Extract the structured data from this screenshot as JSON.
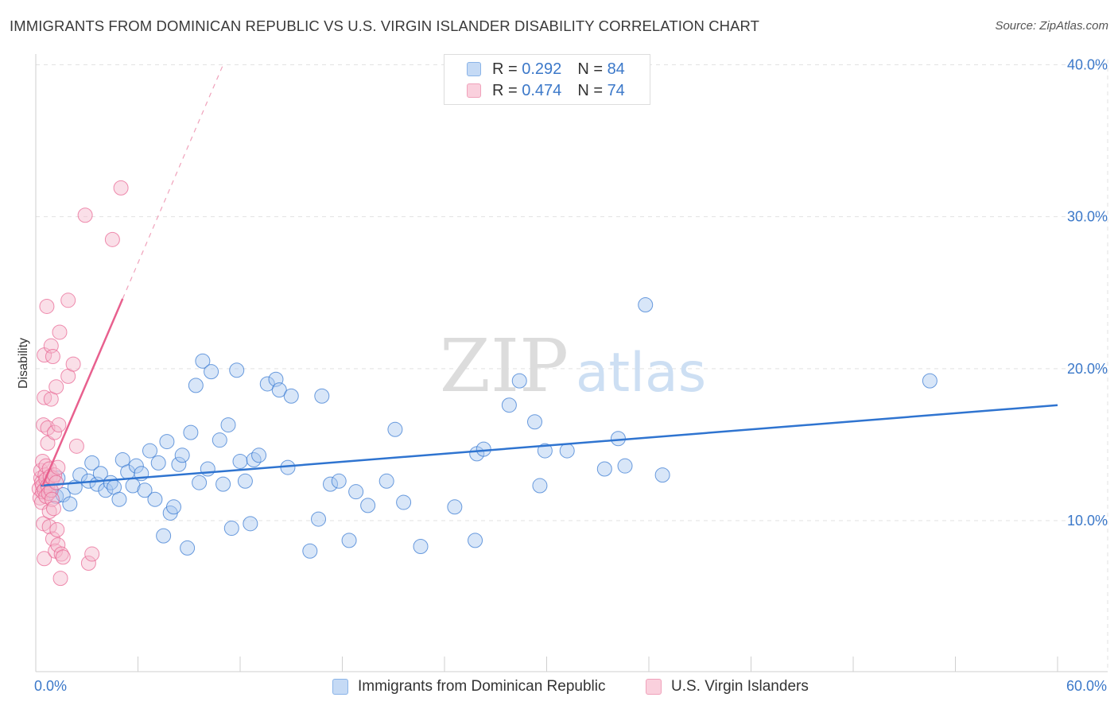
{
  "title": "IMMIGRANTS FROM DOMINICAN REPUBLIC VS U.S. VIRGIN ISLANDER DISABILITY CORRELATION CHART",
  "source": "Source: ZipAtlas.com",
  "watermark": {
    "part1": "ZIP",
    "part2": "atlas"
  },
  "legend_top": [
    {
      "r_label": "R =",
      "r_value": "0.292",
      "n_label": "N =",
      "n_value": "84",
      "color": "#a8c8f0"
    },
    {
      "r_label": "R =",
      "r_value": "0.474",
      "n_label": "N =",
      "n_value": "74",
      "color": "#f5b8cb"
    }
  ],
  "legend_bottom": [
    {
      "label": "Immigrants from Dominican Republic",
      "color": "#a8c8f0"
    },
    {
      "label": "U.S. Virgin Islanders",
      "color": "#f5b8cb"
    }
  ],
  "colors": {
    "blue": "#2f74d0",
    "pink": "#e8608e",
    "blue_fill": "#a8c8f0",
    "pink_fill": "#f5b8cb",
    "grid": "#e2e2e2",
    "axis_text": "#3b78c9"
  },
  "chart_data": {
    "type": "scatter",
    "title": "IMMIGRANTS FROM DOMINICAN REPUBLIC VS U.S. VIRGIN ISLANDER DISABILITY CORRELATION CHART",
    "xlabel": "",
    "ylabel": "Disability",
    "xlim": [
      0,
      60
    ],
    "ylim": [
      0,
      41.5
    ],
    "x_tick_labels": [
      {
        "value": 0,
        "label": "0.0%"
      },
      {
        "value": 60,
        "label": "60.0%"
      }
    ],
    "y_tick_labels": [
      {
        "value": 10,
        "label": "10.0%"
      },
      {
        "value": 20,
        "label": "20.0%"
      },
      {
        "value": 30,
        "label": "30.0%"
      },
      {
        "value": 40,
        "label": "40.0%"
      }
    ],
    "series": [
      {
        "name": "Immigrants from Dominican Republic",
        "color": "blue",
        "trend": {
          "x0": 0.3,
          "y0": 12.3,
          "x1": 60,
          "y1": 17.6
        },
        "points": [
          [
            0.7,
            12.4
          ],
          [
            0.9,
            12.0
          ],
          [
            1.2,
            11.6
          ],
          [
            1.3,
            12.8
          ],
          [
            1.6,
            11.7
          ],
          [
            2.0,
            11.1
          ],
          [
            2.3,
            12.2
          ],
          [
            2.6,
            13.0
          ],
          [
            3.1,
            12.6
          ],
          [
            3.3,
            13.8
          ],
          [
            3.6,
            12.4
          ],
          [
            3.8,
            13.1
          ],
          [
            4.1,
            12.0
          ],
          [
            4.4,
            12.5
          ],
          [
            4.6,
            12.2
          ],
          [
            4.9,
            11.4
          ],
          [
            5.1,
            14.0
          ],
          [
            5.4,
            13.2
          ],
          [
            5.7,
            12.3
          ],
          [
            5.9,
            13.6
          ],
          [
            6.2,
            13.1
          ],
          [
            6.4,
            12.0
          ],
          [
            6.7,
            14.6
          ],
          [
            7.0,
            11.4
          ],
          [
            7.2,
            13.8
          ],
          [
            7.5,
            9.0
          ],
          [
            7.7,
            15.2
          ],
          [
            7.9,
            10.5
          ],
          [
            8.1,
            10.9
          ],
          [
            8.4,
            13.7
          ],
          [
            8.6,
            14.3
          ],
          [
            8.9,
            8.2
          ],
          [
            9.1,
            15.8
          ],
          [
            9.4,
            18.9
          ],
          [
            9.6,
            12.5
          ],
          [
            9.8,
            20.5
          ],
          [
            10.1,
            13.4
          ],
          [
            10.3,
            19.8
          ],
          [
            10.8,
            15.3
          ],
          [
            11.0,
            12.4
          ],
          [
            11.3,
            16.3
          ],
          [
            11.5,
            9.5
          ],
          [
            11.8,
            19.9
          ],
          [
            12.0,
            13.9
          ],
          [
            12.3,
            12.6
          ],
          [
            12.6,
            9.8
          ],
          [
            12.8,
            14.0
          ],
          [
            13.1,
            14.3
          ],
          [
            13.6,
            19.0
          ],
          [
            14.1,
            19.3
          ],
          [
            14.3,
            18.6
          ],
          [
            14.8,
            13.5
          ],
          [
            15.0,
            18.2
          ],
          [
            16.1,
            8.0
          ],
          [
            16.6,
            10.1
          ],
          [
            16.8,
            18.2
          ],
          [
            17.3,
            12.4
          ],
          [
            17.8,
            12.6
          ],
          [
            18.4,
            8.7
          ],
          [
            18.8,
            11.9
          ],
          [
            19.5,
            11.0
          ],
          [
            20.6,
            12.6
          ],
          [
            21.1,
            16.0
          ],
          [
            21.6,
            11.2
          ],
          [
            22.6,
            8.3
          ],
          [
            24.6,
            10.9
          ],
          [
            25.8,
            8.7
          ],
          [
            25.9,
            14.4
          ],
          [
            26.3,
            14.7
          ],
          [
            27.8,
            17.6
          ],
          [
            28.4,
            19.2
          ],
          [
            29.3,
            16.5
          ],
          [
            29.6,
            12.3
          ],
          [
            29.9,
            14.6
          ],
          [
            31.2,
            14.6
          ],
          [
            33.4,
            13.4
          ],
          [
            34.2,
            15.4
          ],
          [
            34.6,
            13.6
          ],
          [
            35.8,
            24.2
          ],
          [
            36.8,
            13.0
          ],
          [
            52.5,
            19.2
          ]
        ]
      },
      {
        "name": "U.S. Virgin Islanders",
        "color": "pink",
        "trend": {
          "x0": 0.4,
          "y0": 12.3,
          "x1": 5.1,
          "y1": 24.6
        },
        "trend_extension": {
          "x0": 5.1,
          "y0": 24.6,
          "x1": 11.0,
          "y1": 40.0
        },
        "points": [
          [
            0.2,
            12.1
          ],
          [
            0.25,
            11.5
          ],
          [
            0.3,
            12.8
          ],
          [
            0.3,
            13.3
          ],
          [
            0.35,
            11.2
          ],
          [
            0.35,
            12.5
          ],
          [
            0.4,
            13.9
          ],
          [
            0.4,
            11.9
          ],
          [
            0.4,
            12.3
          ],
          [
            0.45,
            16.3
          ],
          [
            0.45,
            9.8
          ],
          [
            0.5,
            7.5
          ],
          [
            0.5,
            18.1
          ],
          [
            0.5,
            20.9
          ],
          [
            0.5,
            12.0
          ],
          [
            0.55,
            13.0
          ],
          [
            0.6,
            13.6
          ],
          [
            0.6,
            11.6
          ],
          [
            0.6,
            12.7
          ],
          [
            0.65,
            24.1
          ],
          [
            0.7,
            16.1
          ],
          [
            0.7,
            15.1
          ],
          [
            0.7,
            12.3
          ],
          [
            0.75,
            11.8
          ],
          [
            0.8,
            13.4
          ],
          [
            0.8,
            10.6
          ],
          [
            0.8,
            9.6
          ],
          [
            0.85,
            12.9
          ],
          [
            0.9,
            21.5
          ],
          [
            0.9,
            18.0
          ],
          [
            0.9,
            12.0
          ],
          [
            0.95,
            11.4
          ],
          [
            1.0,
            20.8
          ],
          [
            1.0,
            8.8
          ],
          [
            1.0,
            12.8
          ],
          [
            1.05,
            10.8
          ],
          [
            1.1,
            15.8
          ],
          [
            1.1,
            13.0
          ],
          [
            1.15,
            8.0
          ],
          [
            1.2,
            18.8
          ],
          [
            1.2,
            12.5
          ],
          [
            1.25,
            9.4
          ],
          [
            1.3,
            13.5
          ],
          [
            1.3,
            8.4
          ],
          [
            1.35,
            16.3
          ],
          [
            1.4,
            22.4
          ],
          [
            1.45,
            6.2
          ],
          [
            1.5,
            7.8
          ],
          [
            1.6,
            7.6
          ],
          [
            1.9,
            24.5
          ],
          [
            1.9,
            19.5
          ],
          [
            2.2,
            20.3
          ],
          [
            2.4,
            14.9
          ],
          [
            2.9,
            30.1
          ],
          [
            3.1,
            7.2
          ],
          [
            3.3,
            7.8
          ],
          [
            4.5,
            28.5
          ],
          [
            5.0,
            31.9
          ]
        ]
      }
    ]
  }
}
